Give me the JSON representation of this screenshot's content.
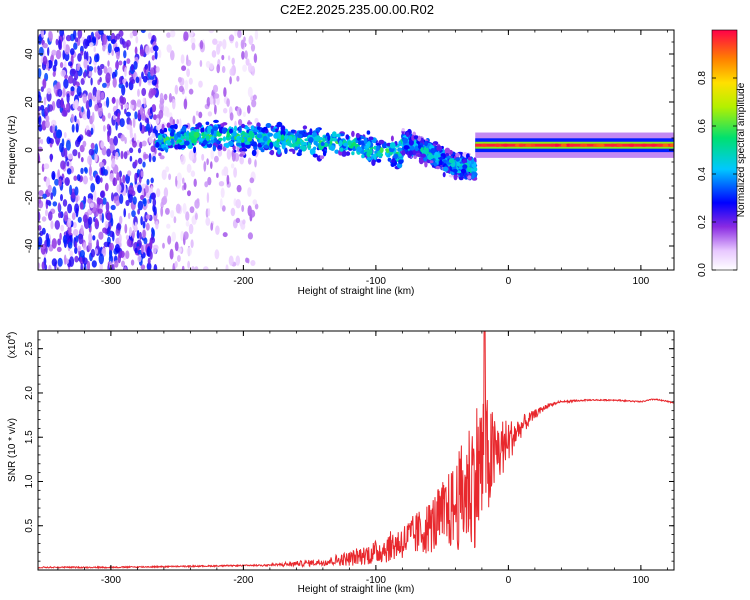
{
  "figure": {
    "title": "C2E2.2025.235.00.00.R02"
  },
  "chart_data": [
    {
      "type": "heatmap",
      "name": "spectrogram",
      "xlabel": "Height of straight line (km)",
      "ylabel": "Frequency (Hz)",
      "xlim": [
        -355,
        125
      ],
      "ylim": [
        -50,
        50
      ],
      "xticks": [
        -300,
        -200,
        -100,
        0,
        100
      ],
      "yticks": [
        -40,
        -20,
        0,
        20,
        40
      ],
      "colorbar": {
        "label": "Normalized spectral amplitude",
        "range": [
          0,
          1
        ],
        "ticks": [
          "0.0",
          "0.2",
          "0.4",
          "0.6",
          "0.8"
        ]
      },
      "bands": [
        {
          "x": [
            -355,
            -265
          ],
          "f_center": 0,
          "f_halfwidth": 50,
          "amplitude": 0.3,
          "note": "broadband noise, high density"
        },
        {
          "x": [
            -265,
            -190
          ],
          "f_center": 0,
          "f_halfwidth": 50,
          "amplitude": 0.15,
          "note": "broadband noise, lower density"
        },
        {
          "x": [
            -265,
            -80
          ],
          "f_center": [
            4,
            6,
            4,
            3,
            -2
          ],
          "f_halfwidth": 5,
          "amplitude": 0.45,
          "note": "signal ridge"
        },
        {
          "x": [
            -80,
            -25
          ],
          "f_center": [
            3,
            0,
            -6,
            -8
          ],
          "f_halfwidth": 4,
          "amplitude": 0.4,
          "note": "signal ridge, descending"
        },
        {
          "x": [
            -25,
            125
          ],
          "f_center": 2,
          "f_halfwidth": 1.2,
          "amplitude": 0.95,
          "note": "stable carrier"
        }
      ]
    },
    {
      "type": "line",
      "name": "snr",
      "xlabel": "Height of straight line (km)",
      "ylabel": "SNR (10 * v/v)",
      "scale_label": "(x10",
      "scale_exp": "4",
      "scale_close": ")",
      "xlim": [
        -355,
        125
      ],
      "ylim": [
        0,
        2.7
      ],
      "xticks": [
        -300,
        -200,
        -100,
        0,
        100
      ],
      "yticks": [
        0.5,
        1.0,
        1.5,
        2.0,
        2.5
      ],
      "ytick_labels": [
        "0.5",
        "1.0",
        "1.5",
        "2.0",
        "2.5"
      ],
      "color": "#e8282d",
      "series": [
        {
          "name": "SNR",
          "x": [
            -355,
            -300,
            -250,
            -200,
            -170,
            -140,
            -120,
            -100,
            -80,
            -60,
            -40,
            -30,
            -20,
            -10,
            0,
            10,
            20,
            30,
            40,
            60,
            80,
            100,
            110,
            125
          ],
          "y": [
            0.03,
            0.03,
            0.04,
            0.05,
            0.06,
            0.09,
            0.13,
            0.2,
            0.32,
            0.48,
            0.72,
            0.95,
            1.2,
            1.3,
            1.45,
            1.62,
            1.76,
            1.86,
            1.9,
            1.92,
            1.92,
            1.9,
            1.93,
            1.89
          ],
          "noise_amplitude": [
            0.0,
            0.0,
            0.0,
            0.0,
            0.02,
            0.04,
            0.08,
            0.14,
            0.2,
            0.3,
            0.5,
            0.75,
            0.9,
            0.45,
            0.25,
            0.12,
            0.05,
            0.02,
            0.01,
            0.0,
            0.0,
            0.0,
            0.0,
            0.0
          ]
        }
      ],
      "peak": {
        "x": -18,
        "y": 2.7
      }
    }
  ]
}
